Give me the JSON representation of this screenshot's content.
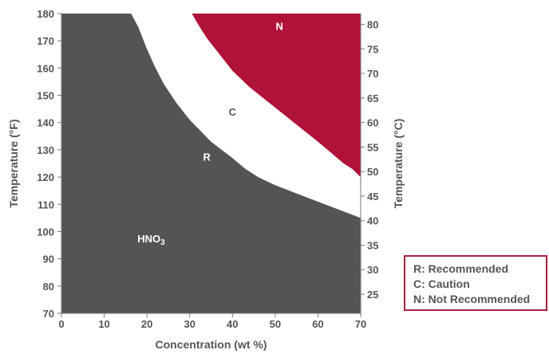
{
  "chart_data": {
    "type": "area",
    "xlabel": "Concentration (wt %)",
    "ylabel": "Temperature (°F)",
    "y2label": "Temperature (°C)",
    "xlim": [
      0,
      70
    ],
    "ylim": [
      70,
      180
    ],
    "y2lim": [
      21.1,
      82.2
    ],
    "x_ticks": [
      0,
      10,
      20,
      30,
      40,
      50,
      60,
      70
    ],
    "y_ticks": [
      70,
      80,
      90,
      100,
      110,
      120,
      130,
      140,
      150,
      160,
      170,
      180
    ],
    "y2_ticks": [
      25,
      30,
      35,
      40,
      45,
      50,
      55,
      60,
      65,
      70,
      75,
      80
    ],
    "grid": false,
    "chemical_label": "HNO",
    "chemical_subscript": "3",
    "colors": {
      "recommended": "#545452",
      "caution": "#ffffff",
      "not_recommended": "#b01239",
      "text": "#555555",
      "legend_border": "#a8213f"
    },
    "regions": [
      {
        "key": "R",
        "boundary_name": "R/C boundary",
        "label": "R",
        "label_at": [
          34,
          126
        ]
      },
      {
        "key": "C",
        "boundary_name": "C/N boundary",
        "label": "C",
        "label_at": [
          40,
          142.5
        ]
      },
      {
        "key": "N",
        "label": "N",
        "label_at": [
          51,
          174
        ]
      }
    ],
    "boundaries": {
      "recommended_upper": [
        {
          "x": 16.3,
          "y": 180
        },
        {
          "x": 18,
          "y": 175
        },
        {
          "x": 20,
          "y": 167
        },
        {
          "x": 22,
          "y": 160
        },
        {
          "x": 24,
          "y": 154
        },
        {
          "x": 27,
          "y": 147
        },
        {
          "x": 30,
          "y": 141
        },
        {
          "x": 35,
          "y": 133
        },
        {
          "x": 40,
          "y": 127
        },
        {
          "x": 43,
          "y": 123
        },
        {
          "x": 46,
          "y": 120
        },
        {
          "x": 50,
          "y": 117
        },
        {
          "x": 55,
          "y": 114
        },
        {
          "x": 60,
          "y": 111
        },
        {
          "x": 65,
          "y": 108
        },
        {
          "x": 70,
          "y": 105
        }
      ],
      "caution_upper": [
        {
          "x": 30.5,
          "y": 180
        },
        {
          "x": 32,
          "y": 176
        },
        {
          "x": 34,
          "y": 171
        },
        {
          "x": 37,
          "y": 165
        },
        {
          "x": 40,
          "y": 159
        },
        {
          "x": 44,
          "y": 153
        },
        {
          "x": 48,
          "y": 148
        },
        {
          "x": 52,
          "y": 143
        },
        {
          "x": 56,
          "y": 138
        },
        {
          "x": 60,
          "y": 133
        },
        {
          "x": 63,
          "y": 129
        },
        {
          "x": 66,
          "y": 125
        },
        {
          "x": 68,
          "y": 123
        },
        {
          "x": 70,
          "y": 120
        }
      ]
    },
    "legend_items": [
      "R: Recommended",
      "C: Caution",
      "N: Not Recommended"
    ],
    "legend_position": "bottom-right"
  }
}
